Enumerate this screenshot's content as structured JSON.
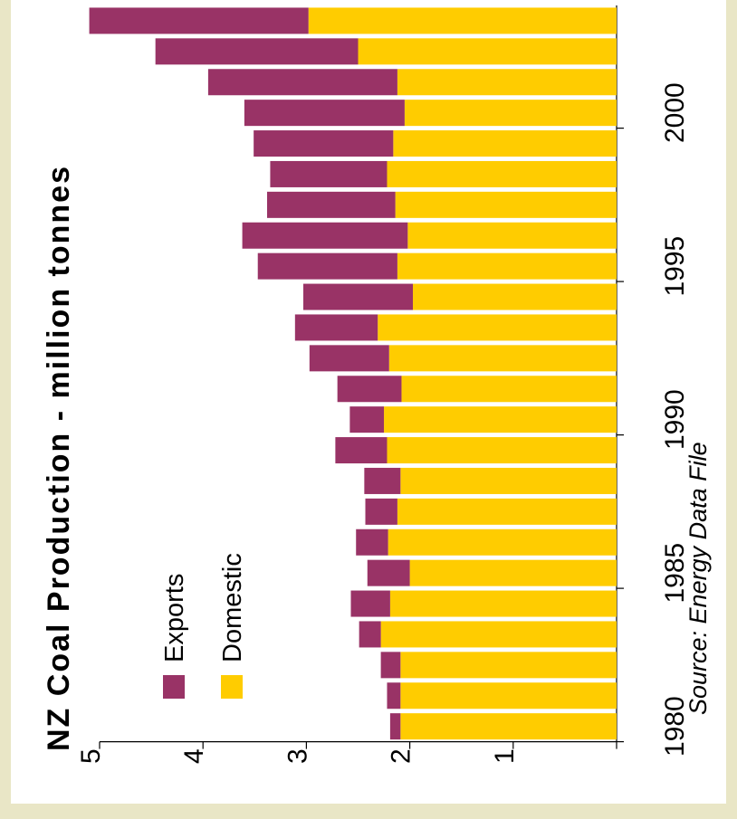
{
  "chart_data": {
    "type": "bar",
    "orientation": "horizontal-stacked, figure rotated 90deg",
    "title": "NZ Coal Production  -  million tonnes",
    "source": "Source: Energy Data File",
    "categories": [
      1980,
      1981,
      1982,
      1983,
      1984,
      1985,
      1986,
      1987,
      1988,
      1989,
      1990,
      1991,
      1992,
      1993,
      1994,
      1995,
      1996,
      1997,
      1998,
      1999,
      2000,
      2001,
      2002,
      2003
    ],
    "year_tick_labels": [
      "1980",
      "1985",
      "1990",
      "1995",
      "2000"
    ],
    "value_tick_labels": [
      "5",
      "4",
      "3",
      "2",
      "1"
    ],
    "ylim": [
      0,
      5
    ],
    "series": [
      {
        "name": "Domestic",
        "color": "#ffcc00",
        "values": [
          2.09,
          2.09,
          2.09,
          2.28,
          2.19,
          2.0,
          2.21,
          2.12,
          2.09,
          2.22,
          2.25,
          2.08,
          2.2,
          2.31,
          1.97,
          2.12,
          2.02,
          2.14,
          2.22,
          2.16,
          2.05,
          2.12,
          2.5,
          2.98
        ]
      },
      {
        "name": "Exports",
        "color": "#993366",
        "values": [
          0.1,
          0.13,
          0.19,
          0.21,
          0.38,
          0.41,
          0.31,
          0.31,
          0.35,
          0.5,
          0.33,
          0.62,
          0.77,
          0.8,
          1.06,
          1.35,
          1.6,
          1.24,
          1.13,
          1.35,
          1.55,
          1.83,
          1.96,
          2.12
        ]
      }
    ],
    "legend": {
      "position": "inside, near lower-left"
    }
  }
}
